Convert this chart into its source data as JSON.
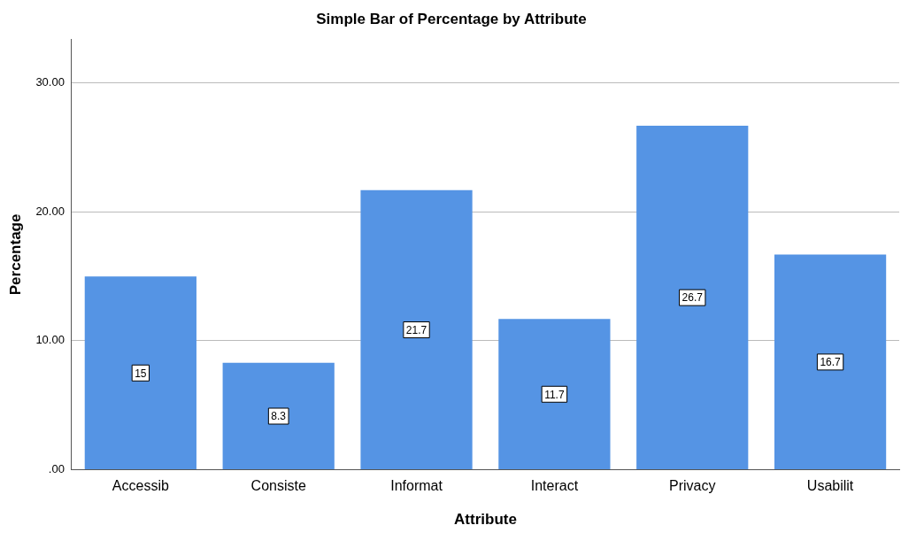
{
  "chart_data": {
    "type": "bar",
    "title": "Simple Bar of Percentage by Attribute",
    "xlabel": "Attribute",
    "ylabel": "Percentage",
    "categories": [
      "Accessib",
      "Consiste",
      "Informat",
      "Interact",
      "Privacy",
      "Usabilit"
    ],
    "values": [
      15,
      8.3,
      21.7,
      11.7,
      26.7,
      16.7
    ],
    "color": "#5594e4",
    "ylim": [
      0,
      33.4
    ],
    "yticks": [
      {
        "value": 0,
        "label": ".00"
      },
      {
        "value": 10,
        "label": "10.00"
      },
      {
        "value": 20,
        "label": "20.00"
      },
      {
        "value": 30,
        "label": "30.00"
      }
    ],
    "grid": "y",
    "data_labels": true
  }
}
